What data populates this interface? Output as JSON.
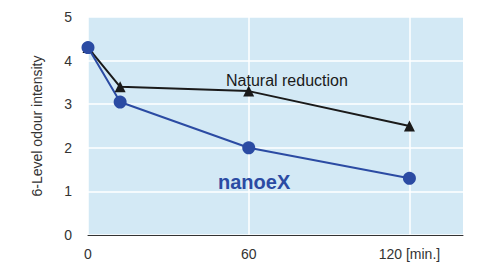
{
  "chart_data": {
    "type": "line",
    "y_label": "6-Level odour intensity",
    "x": [
      0,
      12,
      60,
      120
    ],
    "series": [
      {
        "name": "Natural reduction",
        "color": "#1a1a1a",
        "marker": "triangle",
        "values": [
          4.3,
          3.4,
          3.3,
          2.5
        ]
      },
      {
        "name": "nanoeX",
        "color": "#2b4ba3",
        "marker": "circle",
        "values": [
          4.3,
          3.05,
          2.0,
          1.3
        ]
      }
    ],
    "xlim": [
      0,
      140
    ],
    "xticks": [
      0,
      60,
      {
        "value": 120,
        "label": "120 [min.]"
      }
    ],
    "ylim": [
      0,
      5
    ],
    "yticks": [
      0,
      1,
      2,
      3,
      4,
      5
    ],
    "grid": true
  }
}
